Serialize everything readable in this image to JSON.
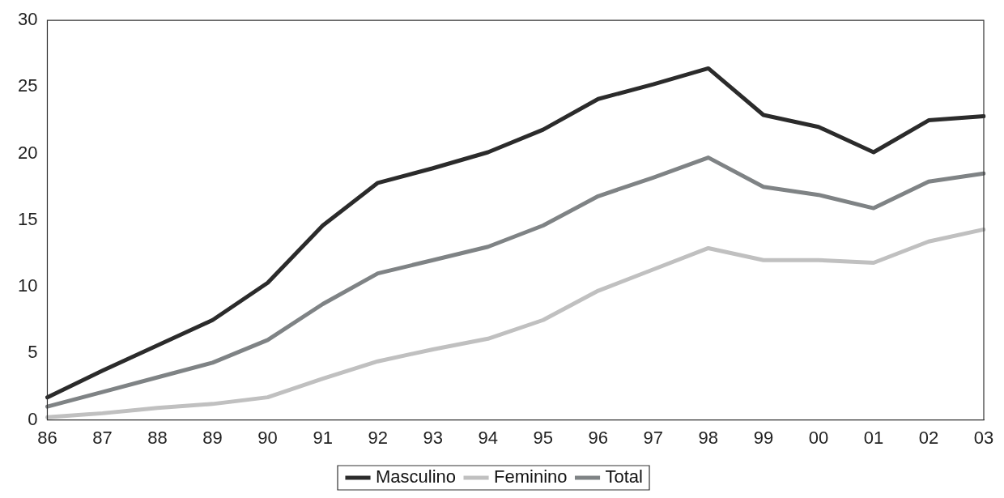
{
  "chart_data": {
    "type": "line",
    "categories": [
      "86",
      "87",
      "88",
      "89",
      "90",
      "91",
      "92",
      "93",
      "94",
      "95",
      "96",
      "97",
      "98",
      "99",
      "00",
      "01",
      "02",
      "03"
    ],
    "series": [
      {
        "name": "Masculino",
        "color": "#2b2b2b",
        "values": [
          1.7,
          3.7,
          5.6,
          7.5,
          10.3,
          14.6,
          17.8,
          18.9,
          20.1,
          21.8,
          24.1,
          25.2,
          26.4,
          22.9,
          22.0,
          20.1,
          22.5,
          22.8
        ]
      },
      {
        "name": "Feminino",
        "color": "#c0c0c0",
        "values": [
          0.2,
          0.5,
          0.9,
          1.2,
          1.7,
          3.1,
          4.4,
          5.3,
          6.1,
          7.5,
          9.7,
          11.3,
          12.9,
          12.0,
          12.0,
          11.8,
          13.4,
          14.3
        ]
      },
      {
        "name": "Total",
        "color": "#7f8385",
        "values": [
          1.0,
          2.1,
          3.2,
          4.3,
          6.0,
          8.7,
          11.0,
          12.0,
          13.0,
          14.6,
          16.8,
          18.2,
          19.7,
          17.5,
          16.9,
          15.9,
          17.9,
          18.5
        ]
      }
    ],
    "ylim": [
      0,
      30
    ],
    "yticks": [
      0,
      5,
      10,
      15,
      20,
      25,
      30
    ],
    "grid": false,
    "legend": "bottom",
    "marker": "none",
    "line_style": "solid"
  }
}
